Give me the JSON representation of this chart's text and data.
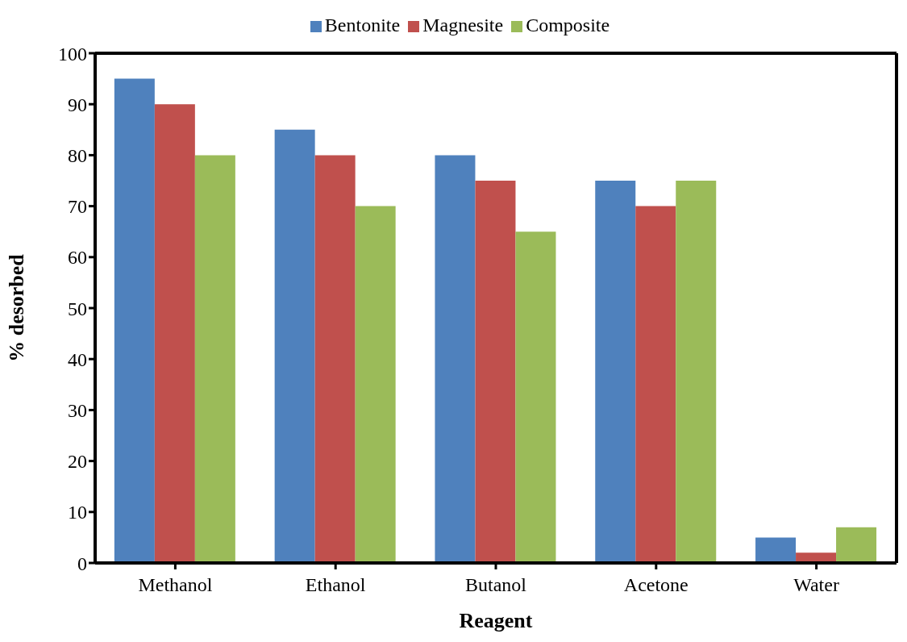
{
  "chart_data": {
    "type": "bar",
    "xlabel": "Reagent",
    "ylabel": "% desorbed",
    "categories": [
      "Methanol",
      "Ethanol",
      "Butanol",
      "Acetone",
      "Water"
    ],
    "series": [
      {
        "name": "Bentonite",
        "color": "#4f81bd",
        "values": [
          95,
          85,
          80,
          75,
          5
        ]
      },
      {
        "name": "Magnesite",
        "color": "#c0504d",
        "values": [
          90,
          80,
          75,
          70,
          2
        ]
      },
      {
        "name": "Composite",
        "color": "#9bbb59",
        "values": [
          80,
          70,
          65,
          75,
          7
        ]
      }
    ],
    "ylim": [
      0,
      100
    ],
    "yticks": [
      0,
      10,
      20,
      30,
      40,
      50,
      60,
      70,
      80,
      90,
      100
    ],
    "grid": false,
    "legend": "top"
  }
}
